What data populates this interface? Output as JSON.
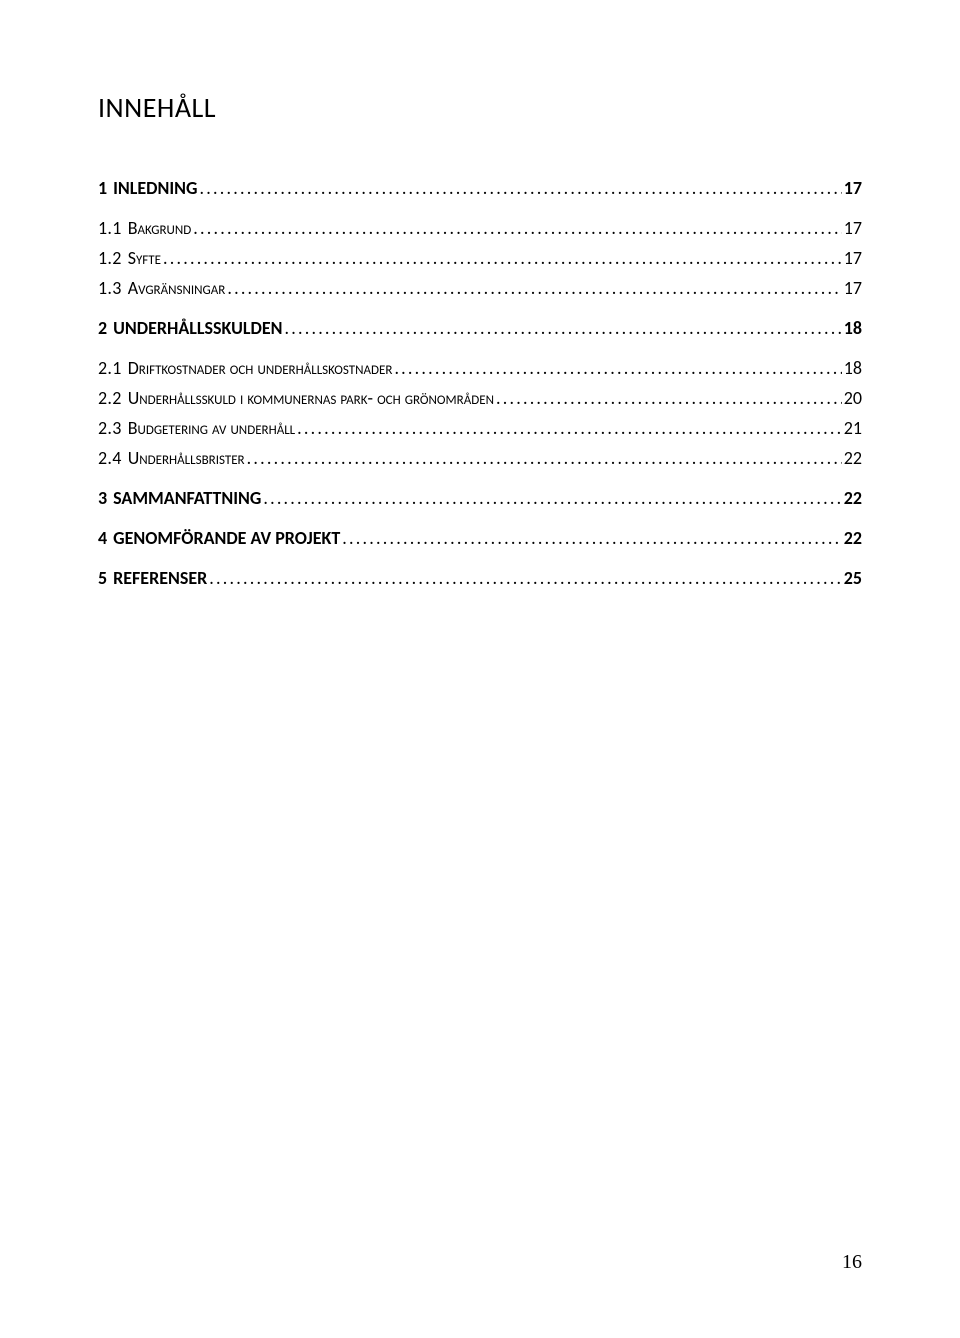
{
  "title": "INNEHÅLL",
  "page_number": "16",
  "toc": [
    {
      "level": 1,
      "num": "1",
      "label": "INLEDNING",
      "page": "17",
      "gap_after": true
    },
    {
      "level": 2,
      "num": "1.1",
      "label": "Bakgrund",
      "page": "17"
    },
    {
      "level": 2,
      "num": "1.2 ",
      "label": "Syfte",
      "page": "17"
    },
    {
      "level": 2,
      "num": "1.3",
      "label": "Avgränsningar",
      "page": "17",
      "gap_after": true
    },
    {
      "level": 1,
      "num": "2",
      "label": "UNDERHÅLLSSKULDEN",
      "page": "18",
      "gap_after": true
    },
    {
      "level": 2,
      "num": "2.1",
      "label": "Driftkostnader och underhållskostnader",
      "page": "18"
    },
    {
      "level": 2,
      "num": "2.2",
      "label": "Underhållsskuld i kommunernas park- och grönområden",
      "page": "20"
    },
    {
      "level": 2,
      "num": "2.3",
      "label": "Budgetering av underhåll",
      "page": "21"
    },
    {
      "level": 2,
      "num": "2.4",
      "label": "Underhållsbrister",
      "page": "22",
      "gap_after": true
    },
    {
      "level": 1,
      "num": "3",
      "label": "SAMMANFATTNING",
      "page": "22",
      "gap_after": true
    },
    {
      "level": 1,
      "num": "4",
      "label": "GENOMFÖRANDE AV PROJEKT",
      "page": "22",
      "gap_after": true
    },
    {
      "level": 1,
      "num": "5",
      "label": "REFERENSER",
      "page": "25"
    }
  ]
}
